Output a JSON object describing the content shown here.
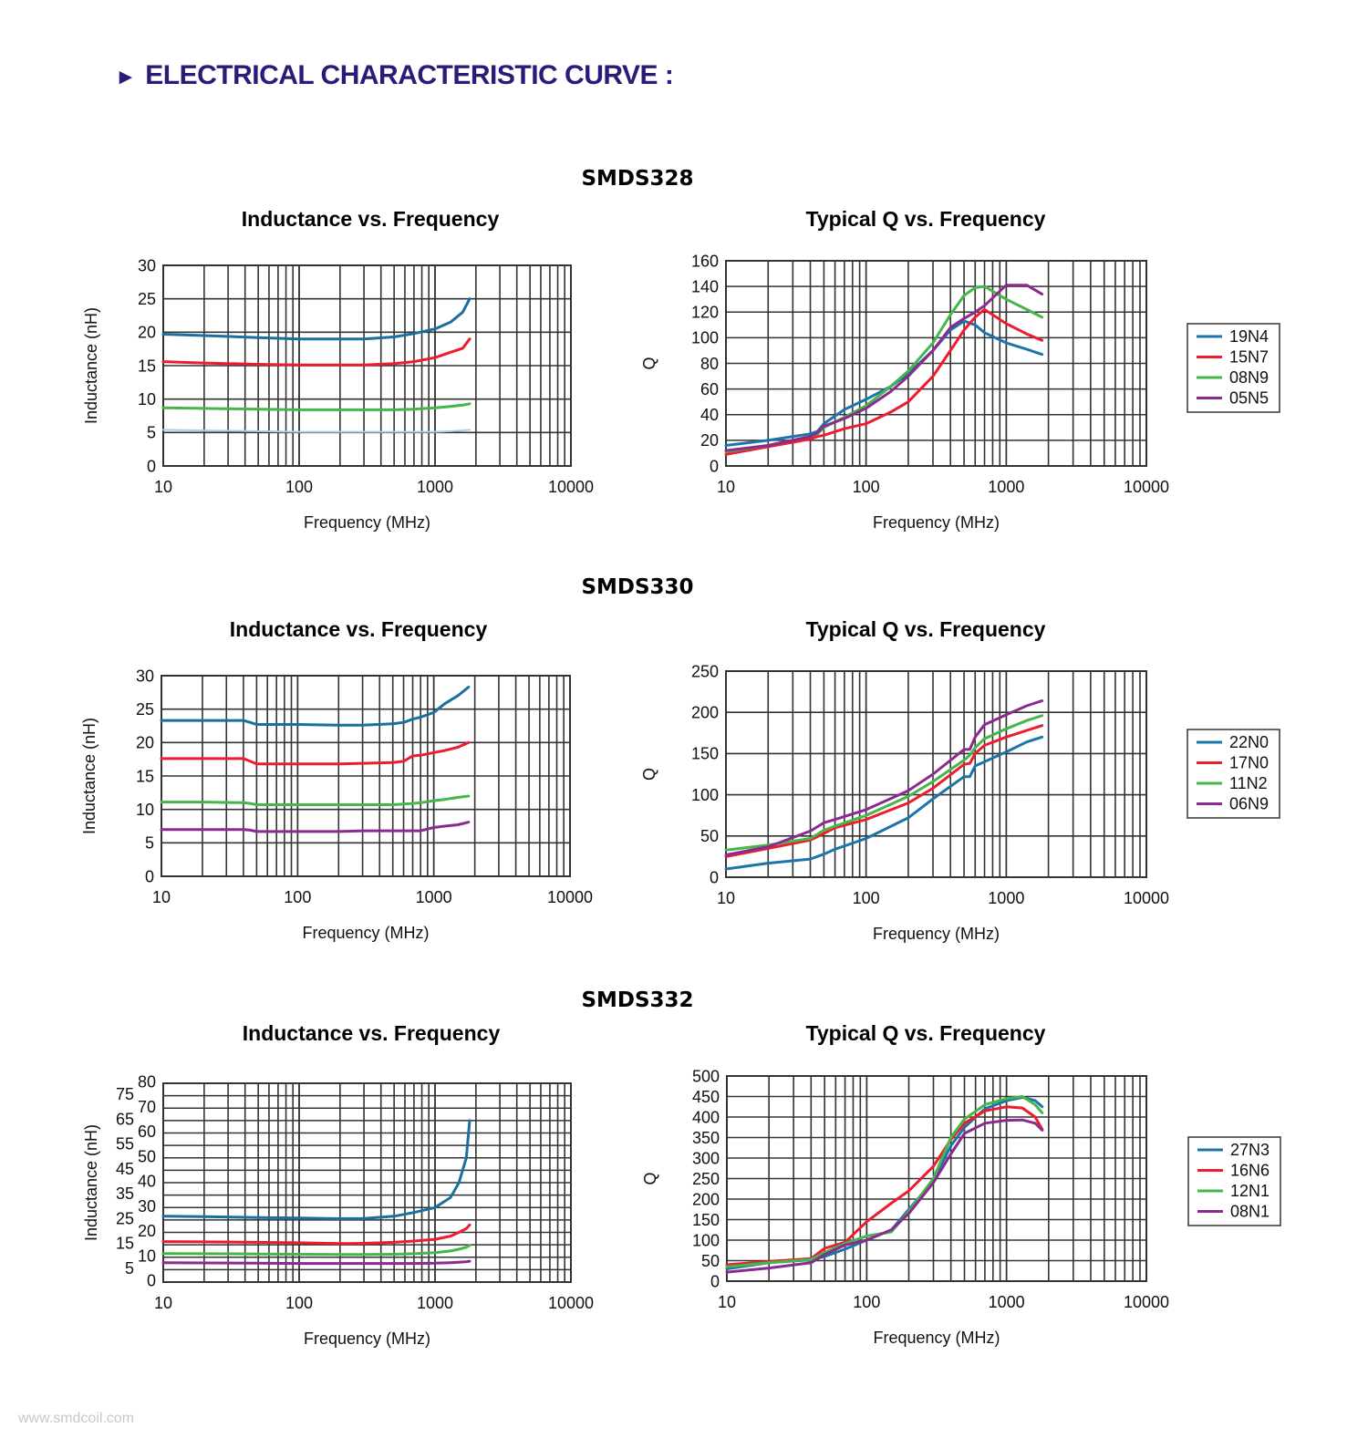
{
  "header": {
    "icon": "right-triangle-icon",
    "arrow": "►",
    "title": "ELECTRICAL CHARACTERISTIC CURVE :"
  },
  "watermark": "www.smdcoil.com",
  "colors": {
    "header": "#2b1a78",
    "blue": "#1b75a8",
    "red": "#ee1c2f",
    "green": "#45b649",
    "purple": "#8b2a8f",
    "lightblue": "#a9d0dc"
  },
  "sections": [
    {
      "title": "SMDS328"
    },
    {
      "title": "SMDS330"
    },
    {
      "title": "SMDS332"
    }
  ],
  "chart_data": [
    {
      "type": "line",
      "section": "SMDS328",
      "title": "Inductance vs. Frequency",
      "xlabel": "Frequency (MHz)",
      "ylabel": "Inductance (nH)",
      "xscale": "log",
      "xlim": [
        10,
        10000
      ],
      "ylim": [
        0,
        30
      ],
      "ystep": 5,
      "grid": true,
      "xticks": [
        "10",
        "100",
        "1000",
        "10000"
      ],
      "x": [
        10,
        20,
        50,
        100,
        200,
        300,
        500,
        700,
        1000,
        1300,
        1600,
        1800
      ],
      "series": [
        {
          "name": "19N4",
          "color": "#1b6f9c",
          "values": [
            19.7,
            19.5,
            19.2,
            19.0,
            19.0,
            19.0,
            19.3,
            19.8,
            20.5,
            21.5,
            23.0,
            25.0
          ]
        },
        {
          "name": "15N7",
          "color": "#ee1c2f",
          "values": [
            15.6,
            15.4,
            15.2,
            15.1,
            15.1,
            15.1,
            15.3,
            15.6,
            16.2,
            17.0,
            17.6,
            19.0
          ]
        },
        {
          "name": "08N9",
          "color": "#45b649",
          "values": [
            8.7,
            8.6,
            8.5,
            8.4,
            8.4,
            8.4,
            8.4,
            8.5,
            8.7,
            8.9,
            9.1,
            9.3
          ]
        },
        {
          "name": "05N5",
          "color": "#a9d0dc",
          "values": [
            5.4,
            5.3,
            5.2,
            5.1,
            5.1,
            5.1,
            5.1,
            5.1,
            5.1,
            5.2,
            5.3,
            5.4
          ]
        }
      ]
    },
    {
      "type": "line",
      "section": "SMDS328",
      "title": "Typical Q vs. Frequency",
      "xlabel": "Frequency (MHz)",
      "ylabel": "Q",
      "xscale": "log",
      "xlim": [
        10,
        10000
      ],
      "ylim": [
        0,
        160
      ],
      "ystep": 20,
      "grid": true,
      "legend": "right",
      "xticks": [
        "10",
        "100",
        "1000",
        "10000"
      ],
      "x": [
        10,
        20,
        40,
        45,
        50,
        70,
        100,
        150,
        200,
        300,
        400,
        500,
        600,
        700,
        1000,
        1400,
        1800
      ],
      "series": [
        {
          "name": "19N4",
          "color": "#1b75a8",
          "values": [
            16,
            20,
            25,
            27,
            33,
            44,
            52,
            62,
            72,
            90,
            106,
            113,
            110,
            104,
            96,
            91,
            87
          ]
        },
        {
          "name": "15N7",
          "color": "#ee1c2f",
          "values": [
            9,
            15,
            21,
            23,
            24,
            29,
            33,
            42,
            50,
            70,
            90,
            106,
            116,
            122,
            111,
            103,
            98
          ]
        },
        {
          "name": "08N9",
          "color": "#45b649",
          "values": [
            11,
            16,
            23,
            25,
            30,
            38,
            47,
            62,
            74,
            96,
            118,
            133,
            139,
            140,
            130,
            122,
            116
          ]
        },
        {
          "name": "05N5",
          "color": "#8b2a8f",
          "values": [
            12,
            16,
            23,
            26,
            31,
            37,
            45,
            58,
            70,
            90,
            108,
            115,
            120,
            125,
            141,
            141,
            134
          ]
        }
      ]
    },
    {
      "type": "line",
      "section": "SMDS330",
      "title": "Inductance vs. Frequency",
      "xlabel": "Frequency (MHz)",
      "ylabel": "Inductance (nH)",
      "xscale": "log",
      "xlim": [
        10,
        10000
      ],
      "ylim": [
        0,
        30
      ],
      "ystep": 5,
      "grid": true,
      "xticks": [
        "10",
        "100",
        "1000",
        "10000"
      ],
      "x": [
        10,
        20,
        40,
        45,
        50,
        100,
        200,
        300,
        500,
        600,
        700,
        800,
        1000,
        1200,
        1500,
        1800
      ],
      "series": [
        {
          "name": "22N0",
          "color": "#1b6f9c",
          "values": [
            23.3,
            23.3,
            23.3,
            23.0,
            22.7,
            22.7,
            22.6,
            22.6,
            22.8,
            23.0,
            23.5,
            23.8,
            24.5,
            25.8,
            27.0,
            28.3
          ]
        },
        {
          "name": "17N0",
          "color": "#ee1c2f",
          "values": [
            17.6,
            17.6,
            17.6,
            17.2,
            16.8,
            16.8,
            16.8,
            16.9,
            17.0,
            17.2,
            18.0,
            18.1,
            18.5,
            18.8,
            19.3,
            20.0
          ]
        },
        {
          "name": "11N2",
          "color": "#45b649",
          "values": [
            11.1,
            11.1,
            11.0,
            10.9,
            10.7,
            10.7,
            10.7,
            10.7,
            10.7,
            10.8,
            10.9,
            11.0,
            11.3,
            11.5,
            11.8,
            12.0
          ]
        },
        {
          "name": "06N9",
          "color": "#8b2a8f",
          "values": [
            7.0,
            7.0,
            7.0,
            6.9,
            6.7,
            6.7,
            6.7,
            6.8,
            6.8,
            6.8,
            6.8,
            6.8,
            7.3,
            7.5,
            7.7,
            8.1
          ]
        }
      ]
    },
    {
      "type": "line",
      "section": "SMDS330",
      "title": "Typical Q vs. Frequency",
      "xlabel": "Frequency (MHz)",
      "ylabel": "Q",
      "xscale": "log",
      "xlim": [
        10,
        10000
      ],
      "ylim": [
        0,
        250
      ],
      "ystep": 50,
      "grid": true,
      "legend": "right",
      "xticks": [
        "10",
        "100",
        "1000",
        "10000"
      ],
      "x": [
        10,
        20,
        40,
        50,
        60,
        100,
        200,
        300,
        500,
        550,
        600,
        700,
        1000,
        1400,
        1800
      ],
      "series": [
        {
          "name": "22N0",
          "color": "#1b75a8",
          "values": [
            10,
            17,
            22,
            28,
            34,
            47,
            72,
            95,
            122,
            122,
            135,
            140,
            152,
            164,
            170
          ]
        },
        {
          "name": "17N0",
          "color": "#ee1c2f",
          "values": [
            25,
            35,
            45,
            53,
            60,
            70,
            90,
            108,
            137,
            138,
            150,
            160,
            170,
            178,
            184
          ]
        },
        {
          "name": "11N2",
          "color": "#45b649",
          "values": [
            33,
            39,
            47,
            57,
            62,
            75,
            98,
            116,
            142,
            148,
            157,
            168,
            180,
            190,
            196
          ]
        },
        {
          "name": "06N9",
          "color": "#8b2a8f",
          "values": [
            27,
            37,
            56,
            66,
            70,
            82,
            105,
            125,
            155,
            155,
            170,
            185,
            197,
            208,
            214
          ]
        }
      ]
    },
    {
      "type": "line",
      "section": "SMDS332",
      "title": "Inductance vs. Frequency",
      "xlabel": "Frequency (MHz)",
      "ylabel": "Inductance (nH)",
      "xscale": "log",
      "xlim": [
        10,
        10000
      ],
      "ylim": [
        0,
        80
      ],
      "ystep": 5,
      "grid": true,
      "xticks": [
        "10",
        "100",
        "1000",
        "10000"
      ],
      "x": [
        10,
        20,
        50,
        100,
        200,
        300,
        500,
        700,
        1000,
        1300,
        1500,
        1700,
        1800
      ],
      "series": [
        {
          "name": "27N3",
          "color": "#1b6f9c",
          "values": [
            26.5,
            26.3,
            26.0,
            25.8,
            25.5,
            25.6,
            26.5,
            28.0,
            30.0,
            34.0,
            40.0,
            50.0,
            65.0
          ]
        },
        {
          "name": "16N6",
          "color": "#ee1c2f",
          "values": [
            16.3,
            16.2,
            16.0,
            15.8,
            15.5,
            15.6,
            16.0,
            16.5,
            17.2,
            18.5,
            20.0,
            21.5,
            23.0
          ]
        },
        {
          "name": "12N1",
          "color": "#45b649",
          "values": [
            11.5,
            11.4,
            11.3,
            11.2,
            11.1,
            11.1,
            11.2,
            11.4,
            11.8,
            12.5,
            13.2,
            14.0,
            14.8
          ]
        },
        {
          "name": "08N1",
          "color": "#8b2a8f",
          "values": [
            7.8,
            7.7,
            7.6,
            7.5,
            7.5,
            7.5,
            7.5,
            7.5,
            7.6,
            7.8,
            8.0,
            8.2,
            8.4
          ]
        }
      ]
    },
    {
      "type": "line",
      "section": "SMDS332",
      "title": "Typical Q vs. Frequency",
      "xlabel": "Frequency (MHz)",
      "ylabel": "Q",
      "xscale": "log",
      "xlim": [
        10,
        10000
      ],
      "ylim": [
        0,
        500
      ],
      "ystep": 50,
      "grid": true,
      "legend": "right",
      "xticks": [
        "10",
        "100",
        "1000",
        "10000"
      ],
      "x": [
        10,
        20,
        40,
        50,
        70,
        100,
        150,
        200,
        300,
        400,
        500,
        700,
        1000,
        1300,
        1600,
        1800
      ],
      "series": [
        {
          "name": "27N3",
          "color": "#1b75a8",
          "values": [
            30,
            45,
            52,
            60,
            78,
            100,
            125,
            175,
            245,
            330,
            375,
            420,
            440,
            448,
            440,
            425
          ]
        },
        {
          "name": "16N6",
          "color": "#ee1c2f",
          "values": [
            40,
            48,
            55,
            80,
            95,
            145,
            190,
            220,
            280,
            345,
            385,
            415,
            425,
            422,
            400,
            370
          ]
        },
        {
          "name": "12N1",
          "color": "#45b649",
          "values": [
            35,
            45,
            53,
            70,
            92,
            110,
            120,
            170,
            250,
            350,
            395,
            430,
            445,
            450,
            430,
            410
          ]
        },
        {
          "name": "08N1",
          "color": "#8b2a8f",
          "values": [
            22,
            32,
            45,
            65,
            88,
            100,
            125,
            165,
            240,
            310,
            360,
            385,
            392,
            393,
            385,
            368
          ]
        }
      ]
    }
  ]
}
